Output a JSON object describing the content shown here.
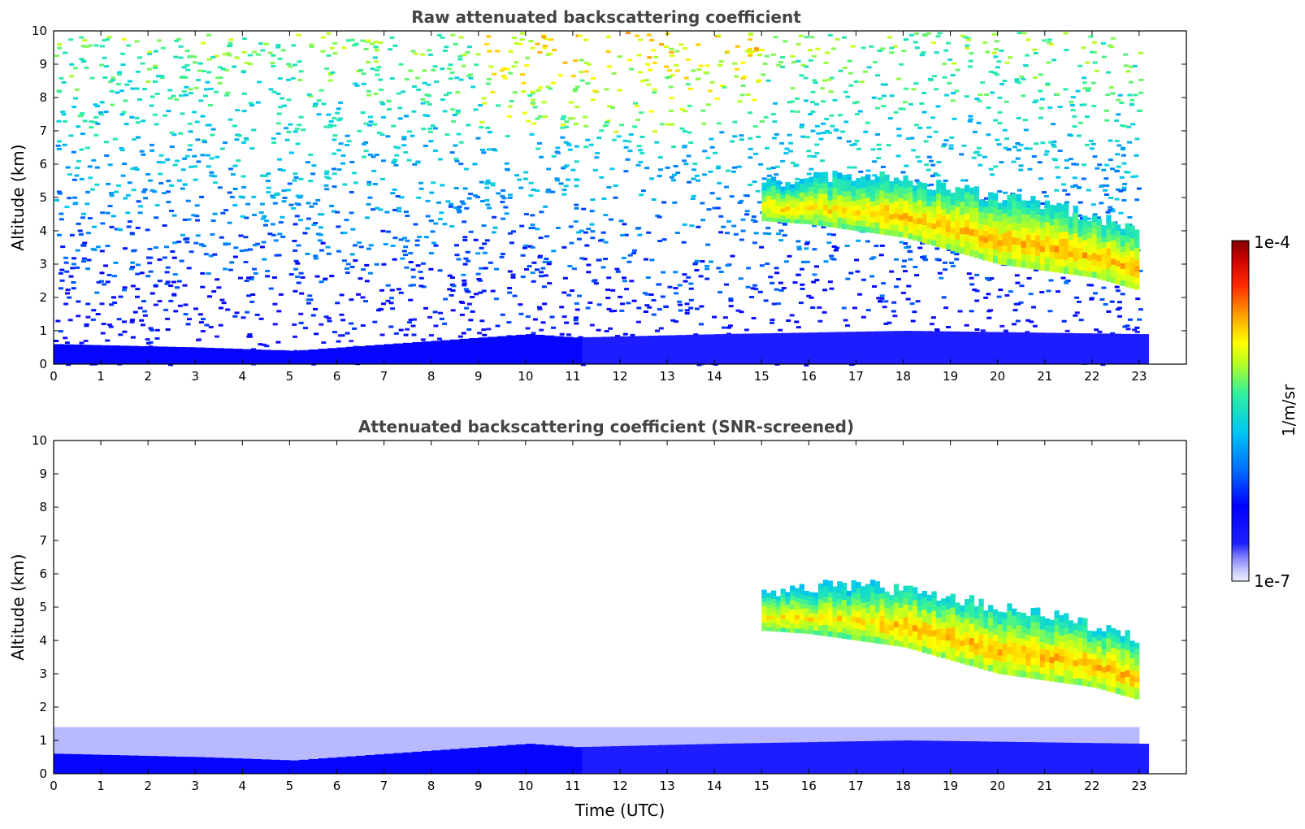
{
  "chart_data": [
    {
      "type": "heatmap",
      "title": "Raw attenuated backscattering coefficient",
      "ylabel": "Altitude (km)",
      "xlabel": "",
      "xlim": [
        0,
        24
      ],
      "ylim": [
        0,
        10
      ],
      "xticks": [
        0,
        1,
        2,
        3,
        4,
        5,
        6,
        7,
        8,
        9,
        10,
        11,
        12,
        13,
        14,
        15,
        16,
        17,
        18,
        19,
        20,
        21,
        22,
        23
      ],
      "yticks": [
        0,
        1,
        2,
        3,
        4,
        5,
        6,
        7,
        8,
        9,
        10
      ],
      "data_time_range": [
        0,
        23
      ],
      "features": {
        "boundary_layer": [
          {
            "t": 0,
            "top": 0.6
          },
          {
            "t": 3,
            "top": 0.5
          },
          {
            "t": 5,
            "top": 0.4
          },
          {
            "t": 6,
            "top": 0.5
          },
          {
            "t": 8,
            "top": 0.7
          },
          {
            "t": 10,
            "top": 0.9
          },
          {
            "t": 11,
            "top": 0.8
          },
          {
            "t": 14,
            "top": 0.9
          },
          {
            "t": 18,
            "top": 1.0
          },
          {
            "t": 23,
            "top": 0.9
          }
        ],
        "cloud_layer": [
          {
            "t": 15.0,
            "base": 4.3,
            "top": 5.6
          },
          {
            "t": 16,
            "base": 4.2,
            "top": 5.8
          },
          {
            "t": 17,
            "base": 4.0,
            "top": 5.9
          },
          {
            "t": 18,
            "base": 3.8,
            "top": 5.7
          },
          {
            "t": 19,
            "base": 3.4,
            "top": 5.5
          },
          {
            "t": 20,
            "base": 3.0,
            "top": 5.2
          },
          {
            "t": 21,
            "base": 2.8,
            "top": 5.0
          },
          {
            "t": 22,
            "base": 2.6,
            "top": 4.6
          },
          {
            "t": 23,
            "base": 2.2,
            "top": 4.2
          }
        ],
        "noise": true
      }
    },
    {
      "type": "heatmap",
      "title": "Attenuated backscattering coefficient (SNR-screened)",
      "ylabel": "Altitude (km)",
      "xlabel": "Time (UTC)",
      "xlim": [
        0,
        24
      ],
      "ylim": [
        0,
        10
      ],
      "xticks": [
        0,
        1,
        2,
        3,
        4,
        5,
        6,
        7,
        8,
        9,
        10,
        11,
        12,
        13,
        14,
        15,
        16,
        17,
        18,
        19,
        20,
        21,
        22,
        23
      ],
      "yticks": [
        0,
        1,
        2,
        3,
        4,
        5,
        6,
        7,
        8,
        9,
        10
      ],
      "data_time_range": [
        0,
        23
      ],
      "features": {
        "boundary_layer": [
          {
            "t": 0,
            "top": 0.6
          },
          {
            "t": 3,
            "top": 0.5
          },
          {
            "t": 5,
            "top": 0.4
          },
          {
            "t": 6,
            "top": 0.5
          },
          {
            "t": 8,
            "top": 0.7
          },
          {
            "t": 10,
            "top": 0.9
          },
          {
            "t": 11,
            "top": 0.8
          },
          {
            "t": 14,
            "top": 0.9
          },
          {
            "t": 18,
            "top": 1.0
          },
          {
            "t": 23,
            "top": 0.9
          }
        ],
        "screened_haze_top": 1.4,
        "cloud_layer": [
          {
            "t": 15.0,
            "base": 4.3,
            "top": 5.6
          },
          {
            "t": 16,
            "base": 4.2,
            "top": 5.8
          },
          {
            "t": 17,
            "base": 4.0,
            "top": 5.9
          },
          {
            "t": 18,
            "base": 3.8,
            "top": 5.7
          },
          {
            "t": 19,
            "base": 3.4,
            "top": 5.5
          },
          {
            "t": 20,
            "base": 3.0,
            "top": 5.2
          },
          {
            "t": 21,
            "base": 2.8,
            "top": 5.0
          },
          {
            "t": 22,
            "base": 2.6,
            "top": 4.6
          },
          {
            "t": 23,
            "base": 2.2,
            "top": 4.2
          }
        ],
        "noise": false
      }
    }
  ],
  "colorbar": {
    "label": "1/m/sr",
    "max_label": "1e-4",
    "min_label": "1e-7",
    "scale": "log",
    "range": [
      1e-07,
      0.0001
    ],
    "colormap": [
      "#e8e8ff",
      "#b4b4ff",
      "#6a6aff",
      "#0000ff",
      "#0050ff",
      "#00a0ff",
      "#00e0e0",
      "#40ff80",
      "#c8ff00",
      "#ffff00",
      "#ffb000",
      "#ff5000",
      "#e00000",
      "#800000"
    ]
  }
}
